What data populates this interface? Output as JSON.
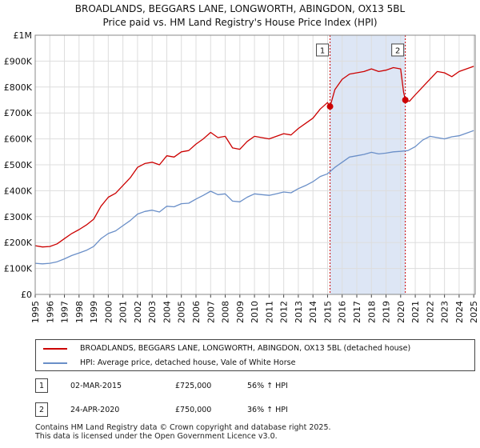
{
  "chart_data": {
    "type": "line",
    "title": "BROADLANDS, BEGGARS LANE, LONGWORTH, ABINGDON, OX13 5BL",
    "subtitle": "Price paid vs. HM Land Registry's House Price Index (HPI)",
    "xlabel": "",
    "ylabel": "",
    "xlim": [
      1995,
      2025.1
    ],
    "ylim": [
      0,
      1000000
    ],
    "x_ticks": [
      1995,
      1996,
      1997,
      1998,
      1999,
      2000,
      2001,
      2002,
      2003,
      2004,
      2005,
      2006,
      2007,
      2008,
      2009,
      2010,
      2011,
      2012,
      2013,
      2014,
      2015,
      2016,
      2017,
      2018,
      2019,
      2020,
      2021,
      2022,
      2023,
      2024,
      2025
    ],
    "x_tick_labels": [
      "1995",
      "1996",
      "1997",
      "1998",
      "1999",
      "2000",
      "2001",
      "2002",
      "2003",
      "2004",
      "2005",
      "2006",
      "2007",
      "2008",
      "2009",
      "2010",
      "2011",
      "2012",
      "2013",
      "2014",
      "2015",
      "2016",
      "2017",
      "2018",
      "2019",
      "2020",
      "2021",
      "2022",
      "2023",
      "2024",
      "2025"
    ],
    "y_ticks": [
      0,
      100000,
      200000,
      300000,
      400000,
      500000,
      600000,
      700000,
      800000,
      900000,
      1000000
    ],
    "y_tick_labels": [
      "£0",
      "£100K",
      "£200K",
      "£300K",
      "£400K",
      "£500K",
      "£600K",
      "£700K",
      "£800K",
      "£900K",
      "£1M"
    ],
    "grid": true,
    "shaded_span": [
      2015.17,
      2020.32
    ],
    "series": [
      {
        "name": "BROADLANDS, BEGGARS LANE, LONGWORTH, ABINGDON, OX13 5BL (detached house)",
        "color": "#cc0000",
        "x": [
          1995,
          1995.5,
          1996,
          1996.5,
          1997,
          1997.5,
          1998,
          1998.5,
          1999,
          1999.5,
          2000,
          2000.5,
          2001,
          2001.5,
          2002,
          2002.5,
          2003,
          2003.5,
          2004,
          2004.5,
          2005,
          2005.5,
          2006,
          2006.5,
          2007,
          2007.5,
          2008,
          2008.5,
          2009,
          2009.5,
          2010,
          2010.5,
          2011,
          2011.5,
          2012,
          2012.5,
          2013,
          2013.5,
          2014,
          2014.5,
          2015,
          2015.17,
          2015.5,
          2016,
          2016.5,
          2017,
          2017.5,
          2018,
          2018.5,
          2019,
          2019.5,
          2020,
          2020.2,
          2020.32,
          2020.6,
          2021,
          2021.5,
          2022,
          2022.5,
          2023,
          2023.5,
          2024,
          2024.5,
          2025
        ],
        "values": [
          188000,
          183000,
          185000,
          195000,
          215000,
          235000,
          250000,
          268000,
          290000,
          340000,
          375000,
          390000,
          420000,
          450000,
          490000,
          505000,
          510000,
          500000,
          535000,
          530000,
          550000,
          555000,
          580000,
          600000,
          625000,
          605000,
          610000,
          565000,
          560000,
          590000,
          610000,
          605000,
          600000,
          610000,
          620000,
          615000,
          640000,
          660000,
          680000,
          715000,
          740000,
          725000,
          790000,
          830000,
          850000,
          855000,
          860000,
          870000,
          860000,
          865000,
          875000,
          870000,
          780000,
          750000,
          745000,
          770000,
          800000,
          830000,
          860000,
          855000,
          840000,
          860000,
          870000,
          880000
        ]
      },
      {
        "name": "HPI: Average price, detached house, Vale of White Horse",
        "color": "#6a8fc8",
        "x": [
          1995,
          1995.5,
          1996,
          1996.5,
          1997,
          1997.5,
          1998,
          1998.5,
          1999,
          1999.5,
          2000,
          2000.5,
          2001,
          2001.5,
          2002,
          2002.5,
          2003,
          2003.5,
          2004,
          2004.5,
          2005,
          2005.5,
          2006,
          2006.5,
          2007,
          2007.5,
          2008,
          2008.5,
          2009,
          2009.5,
          2010,
          2010.5,
          2011,
          2011.5,
          2012,
          2012.5,
          2013,
          2013.5,
          2014,
          2014.5,
          2015,
          2015.5,
          2016,
          2016.5,
          2017,
          2017.5,
          2018,
          2018.5,
          2019,
          2019.5,
          2020,
          2020.5,
          2021,
          2021.5,
          2022,
          2022.5,
          2023,
          2023.5,
          2024,
          2024.5,
          2025
        ],
        "values": [
          120000,
          118000,
          120000,
          126000,
          137000,
          150000,
          160000,
          170000,
          185000,
          215000,
          235000,
          245000,
          265000,
          285000,
          310000,
          320000,
          325000,
          318000,
          340000,
          338000,
          350000,
          352000,
          368000,
          382000,
          398000,
          385000,
          388000,
          360000,
          357000,
          375000,
          388000,
          385000,
          382000,
          388000,
          395000,
          392000,
          408000,
          420000,
          435000,
          455000,
          465000,
          490000,
          510000,
          530000,
          535000,
          540000,
          548000,
          542000,
          545000,
          550000,
          552000,
          555000,
          570000,
          595000,
          610000,
          605000,
          600000,
          608000,
          612000,
          622000,
          632000
        ]
      }
    ],
    "annotations": [
      {
        "label": "1",
        "x": 2015.17,
        "value": 725000
      },
      {
        "label": "2",
        "x": 2020.32,
        "value": 750000
      }
    ]
  },
  "legend": {
    "items": [
      {
        "label": "BROADLANDS, BEGGARS LANE, LONGWORTH, ABINGDON, OX13 5BL (detached house)",
        "color": "#cc0000"
      },
      {
        "label": "HPI: Average price, detached house, Vale of White Horse",
        "color": "#6a8fc8"
      }
    ]
  },
  "sales": [
    {
      "num": "1",
      "date": "02-MAR-2015",
      "price": "£725,000",
      "hpi": "56% ↑ HPI"
    },
    {
      "num": "2",
      "date": "24-APR-2020",
      "price": "£750,000",
      "hpi": "36% ↑ HPI"
    }
  ],
  "footer": {
    "line1": "Contains HM Land Registry data © Crown copyright and database right 2025.",
    "line2": "This data is licensed under the Open Government Licence v3.0."
  }
}
